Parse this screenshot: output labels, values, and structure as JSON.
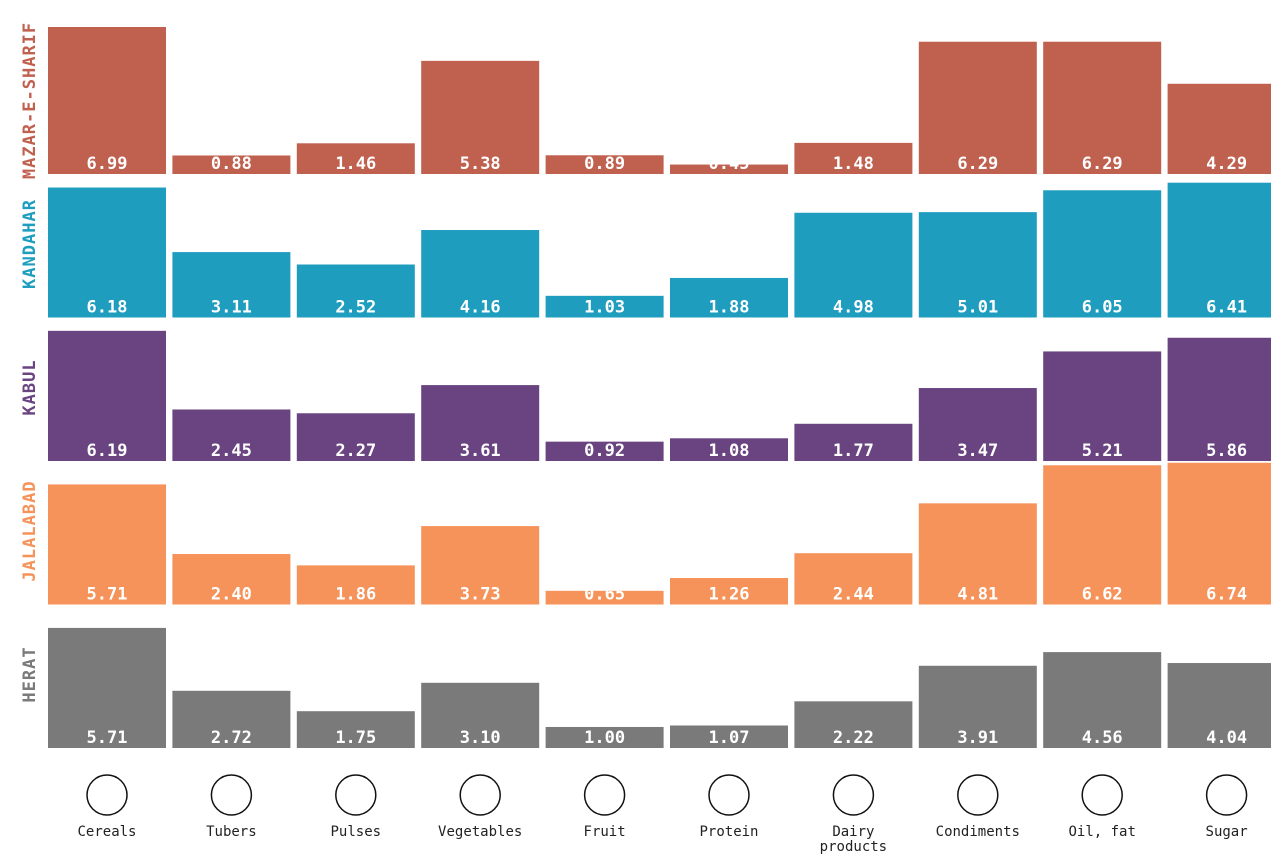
{
  "chart_data": {
    "type": "bar",
    "categories": [
      "Cereals",
      "Tubers",
      "Pulses",
      "Vegetables",
      "Fruit",
      "Protein",
      "Dairy products",
      "Condiments",
      "Oil, fat",
      "Sugar"
    ],
    "series": [
      {
        "name": "MAZAR-E-SHARIF",
        "color": "#c0604f",
        "values": [
          6.99,
          0.88,
          1.46,
          5.38,
          0.89,
          0.45,
          1.48,
          6.29,
          6.29,
          4.29
        ],
        "value_labels": [
          "6.99",
          "0.88",
          "1.46",
          "5.38",
          "0.89",
          "0.45",
          "1.48",
          "6.29",
          "6.29",
          "4.29"
        ]
      },
      {
        "name": "KANDAHAR",
        "color": "#1e9dbf",
        "values": [
          6.18,
          3.11,
          2.52,
          4.16,
          1.03,
          1.88,
          4.98,
          5.01,
          6.05,
          6.41
        ],
        "value_labels": [
          "6.18",
          "3.11",
          "2.52",
          "4.16",
          "1.03",
          "1.88",
          "4.98",
          "5.01",
          "6.05",
          "6.41"
        ]
      },
      {
        "name": "KABUL",
        "color": "#6a4480",
        "values": [
          6.19,
          2.45,
          2.27,
          3.61,
          0.92,
          1.08,
          1.77,
          3.47,
          5.21,
          5.86
        ],
        "value_labels": [
          "6.19",
          "2.45",
          "2.27",
          "3.61",
          "0.92",
          "1.08",
          "1.77",
          "3.47",
          "5.21",
          "5.86"
        ]
      },
      {
        "name": "JALALABAD",
        "color": "#f5935a",
        "values": [
          5.71,
          2.4,
          1.86,
          3.73,
          0.65,
          1.26,
          2.44,
          4.81,
          6.62,
          6.74
        ],
        "value_labels": [
          "5.71",
          "2.40",
          "1.86",
          "3.73",
          "0.65",
          "1.26",
          "2.44",
          "4.81",
          "6.62",
          "6.74"
        ]
      },
      {
        "name": "HERAT",
        "color": "#7a7a7a",
        "values": [
          5.71,
          2.72,
          1.75,
          3.1,
          1.0,
          1.07,
          2.22,
          3.91,
          4.56,
          4.04
        ],
        "value_labels": [
          "5.71",
          "2.72",
          "1.75",
          "3.10",
          "1.00",
          "1.07",
          "2.22",
          "3.91",
          "4.56",
          "4.04"
        ]
      }
    ]
  }
}
